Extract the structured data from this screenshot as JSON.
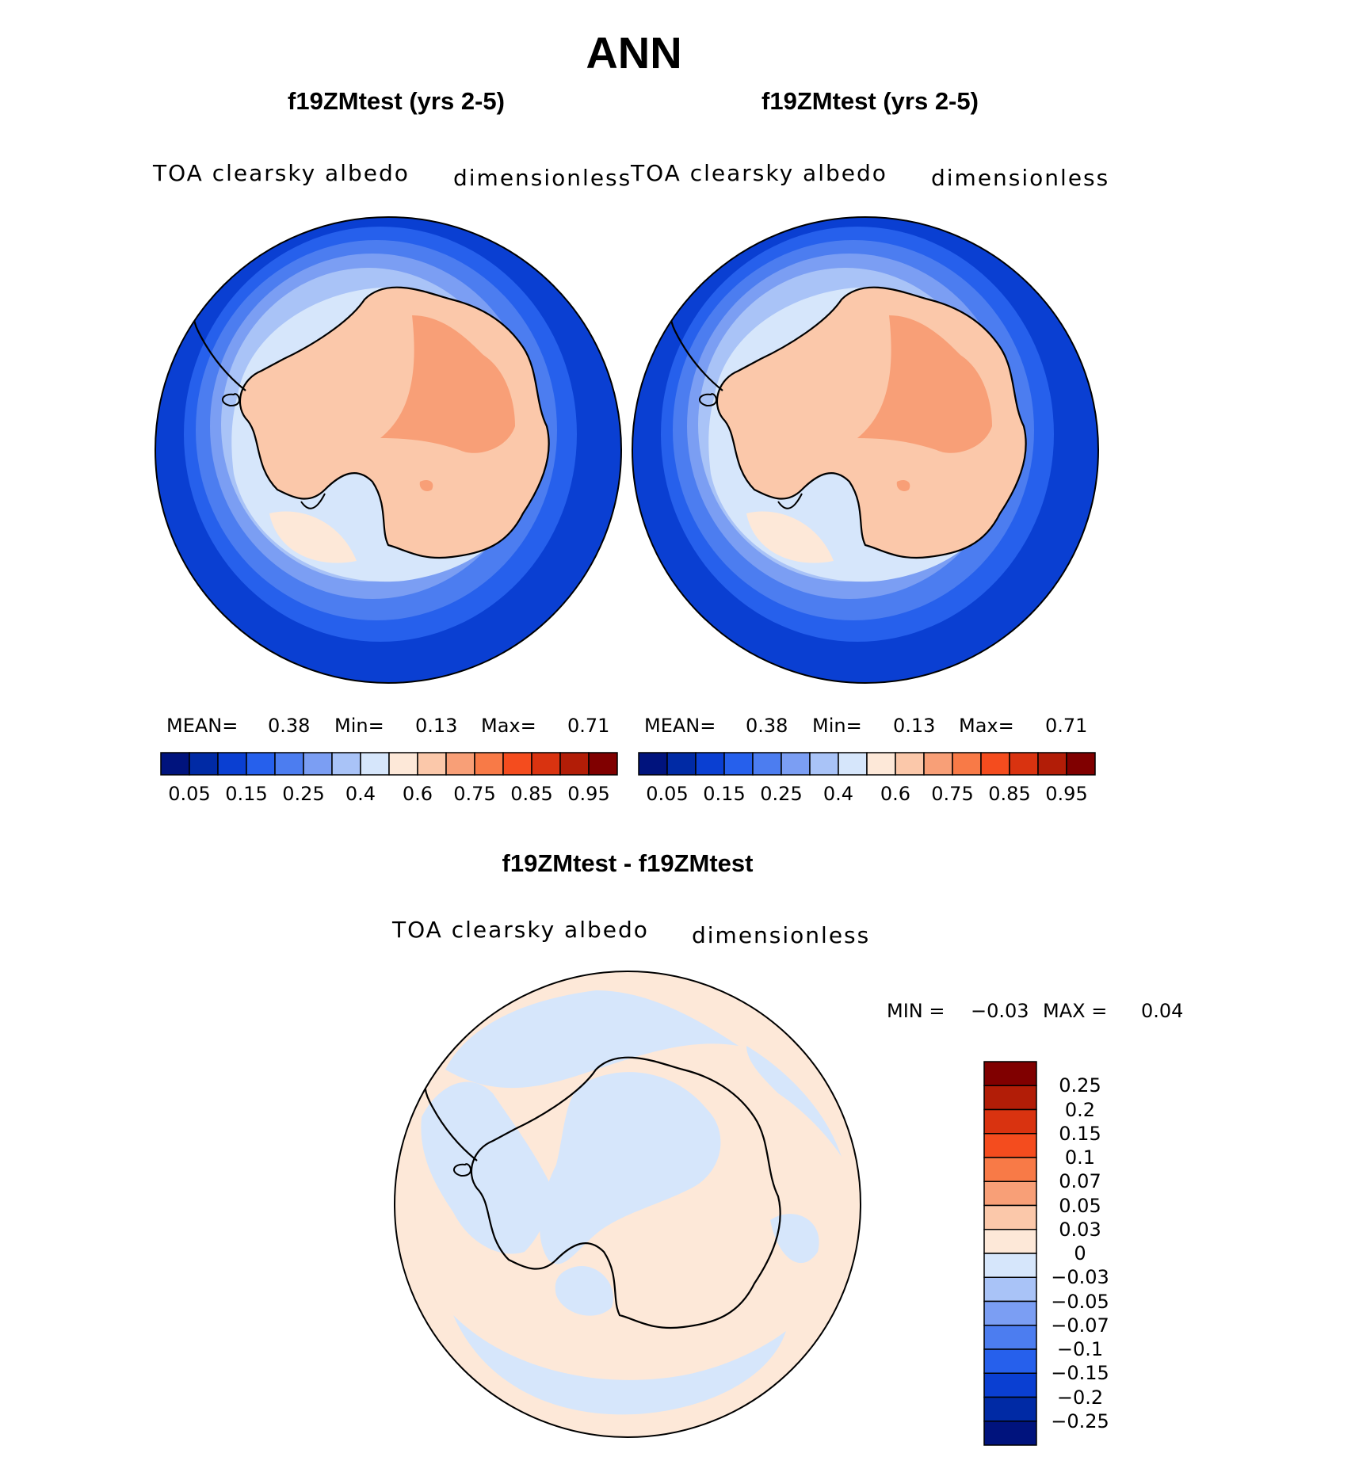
{
  "figure": {
    "title": "ANN",
    "panels": [
      {
        "case_title": "f19ZMtest (yrs 2-5)",
        "variable": "TOA clearsky albedo",
        "units": "dimensionless",
        "stats": {
          "mean_label": "MEAN=",
          "mean": "0.38",
          "min_label": "Min=",
          "min": "0.13",
          "max_label": "Max=",
          "max": "0.71"
        }
      },
      {
        "case_title": "f19ZMtest (yrs 2-5)",
        "variable": "TOA clearsky albedo",
        "units": "dimensionless",
        "stats": {
          "mean_label": "MEAN=",
          "mean": "0.38",
          "min_label": "Min=",
          "min": "0.13",
          "max_label": "Max=",
          "max": "0.71"
        }
      },
      {
        "case_title": "f19ZMtest - f19ZMtest",
        "variable": "TOA clearsky albedo",
        "units": "dimensionless",
        "stats": {
          "min_label": "MIN =",
          "min": "−0.03",
          "max_label": "MAX =",
          "max": "0.04"
        }
      }
    ],
    "colorbar_main": {
      "tick_labels": [
        "0.05",
        "0.15",
        "0.25",
        "0.4",
        "0.6",
        "0.75",
        "0.85",
        "0.95"
      ],
      "colors": [
        "#00137d",
        "#002aa5",
        "#0a3fd2",
        "#2660ec",
        "#4c7df0",
        "#7b9ef3",
        "#a9c3f7",
        "#d6e6fb",
        "#fde8d8",
        "#fbc8aa",
        "#f89f77",
        "#f87a47",
        "#f44c1e",
        "#d93310",
        "#b21d07",
        "#800000"
      ]
    },
    "colorbar_diff": {
      "tick_labels": [
        "0.25",
        "0.2",
        "0.15",
        "0.1",
        "0.07",
        "0.05",
        "0.03",
        "0",
        "−0.03",
        "−0.05",
        "−0.07",
        "−0.1",
        "−0.15",
        "−0.2",
        "−0.25"
      ],
      "colors": [
        "#800000",
        "#b21d07",
        "#d93310",
        "#f44c1e",
        "#f87a47",
        "#f89f77",
        "#fbc8aa",
        "#fde8d8",
        "#d6e6fb",
        "#a9c3f7",
        "#7b9ef3",
        "#4c7df0",
        "#2660ec",
        "#0a3fd2",
        "#002aa5",
        "#00137d"
      ]
    }
  }
}
